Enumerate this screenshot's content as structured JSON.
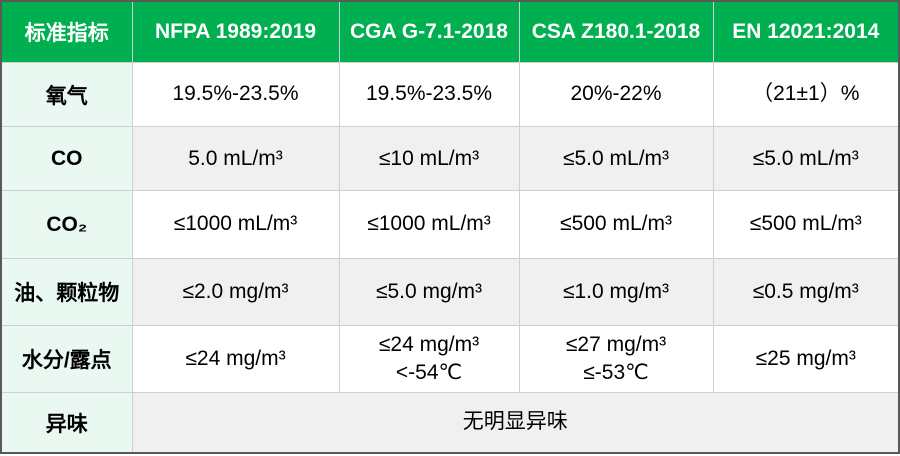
{
  "colors": {
    "header_bg": "#00B050",
    "header_text": "#FFFFFF",
    "label_column_bg": "#E9F8F0",
    "alt_row_bg": "#F0F0F0",
    "outer_border": "#595959",
    "grid_line": "#CFCFCF",
    "body_text": "#000000"
  },
  "chart_data": {
    "type": "table",
    "title": "",
    "columns": [
      "标准指标",
      "NFPA 1989:2019",
      "CGA G-7.1-2018",
      "CSA Z180.1-2018",
      "EN 12021:2014"
    ],
    "rows": [
      {
        "label": "氧气",
        "values": [
          "19.5%-23.5%",
          "19.5%-23.5%",
          "20%-22%",
          "（21±1）%"
        ]
      },
      {
        "label": "CO",
        "values": [
          "5.0 mL/m³",
          "≤10 mL/m³",
          "≤5.0 mL/m³",
          "≤5.0 mL/m³"
        ]
      },
      {
        "label": "CO₂",
        "values": [
          "≤1000 mL/m³",
          "≤1000 mL/m³",
          "≤500 mL/m³",
          "≤500 mL/m³"
        ]
      },
      {
        "label": "油、颗粒物",
        "values": [
          "≤2.0 mg/m³",
          "≤5.0 mg/m³",
          "≤1.0 mg/m³",
          "≤0.5 mg/m³"
        ]
      },
      {
        "label": "水分/露点",
        "values": [
          "≤24 mg/m³",
          "≤24 mg/m³\n<-54℃",
          "≤27 mg/m³\n≤-53℃",
          "≤25 mg/m³"
        ]
      },
      {
        "label": "异味",
        "merged_value": "无明显异味"
      }
    ]
  }
}
